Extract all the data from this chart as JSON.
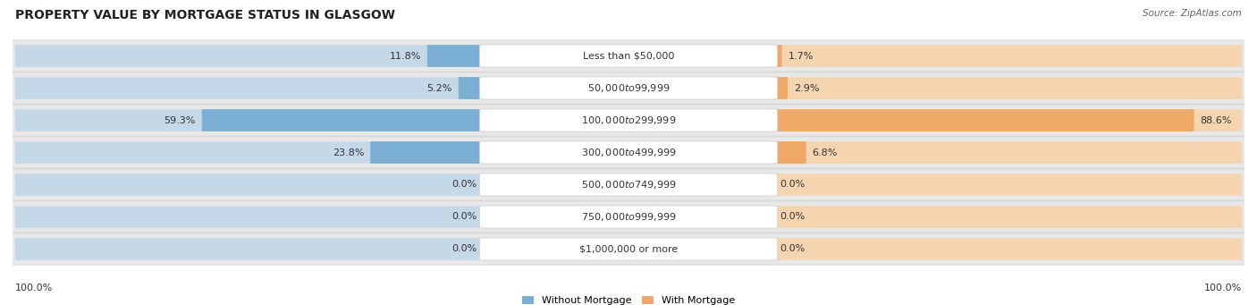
{
  "title": "PROPERTY VALUE BY MORTGAGE STATUS IN GLASGOW",
  "source": "Source: ZipAtlas.com",
  "categories": [
    "Less than $50,000",
    "$50,000 to $99,999",
    "$100,000 to $299,999",
    "$300,000 to $499,999",
    "$500,000 to $749,999",
    "$750,000 to $999,999",
    "$1,000,000 or more"
  ],
  "without_mortgage": [
    11.8,
    5.2,
    59.3,
    23.8,
    0.0,
    0.0,
    0.0
  ],
  "with_mortgage": [
    1.7,
    2.9,
    88.6,
    6.8,
    0.0,
    0.0,
    0.0
  ],
  "left_axis_label": "100.0%",
  "right_axis_label": "100.0%",
  "bar_color_without": "#7BAFD4",
  "bar_color_with": "#F0A868",
  "bar_bg_color_without": "#C5D8E8",
  "bar_bg_color_with": "#F5D5B0",
  "row_bg_color": "#E8E8E8",
  "row_bg_color_alt": "#DCDCDC",
  "legend_without": "Without Mortgage",
  "legend_with": "With Mortgage",
  "max_val": 100.0,
  "title_fontsize": 10,
  "label_fontsize": 8,
  "tick_fontsize": 8,
  "source_fontsize": 7.5,
  "center_label_color": "#333333",
  "value_label_color": "#333333"
}
